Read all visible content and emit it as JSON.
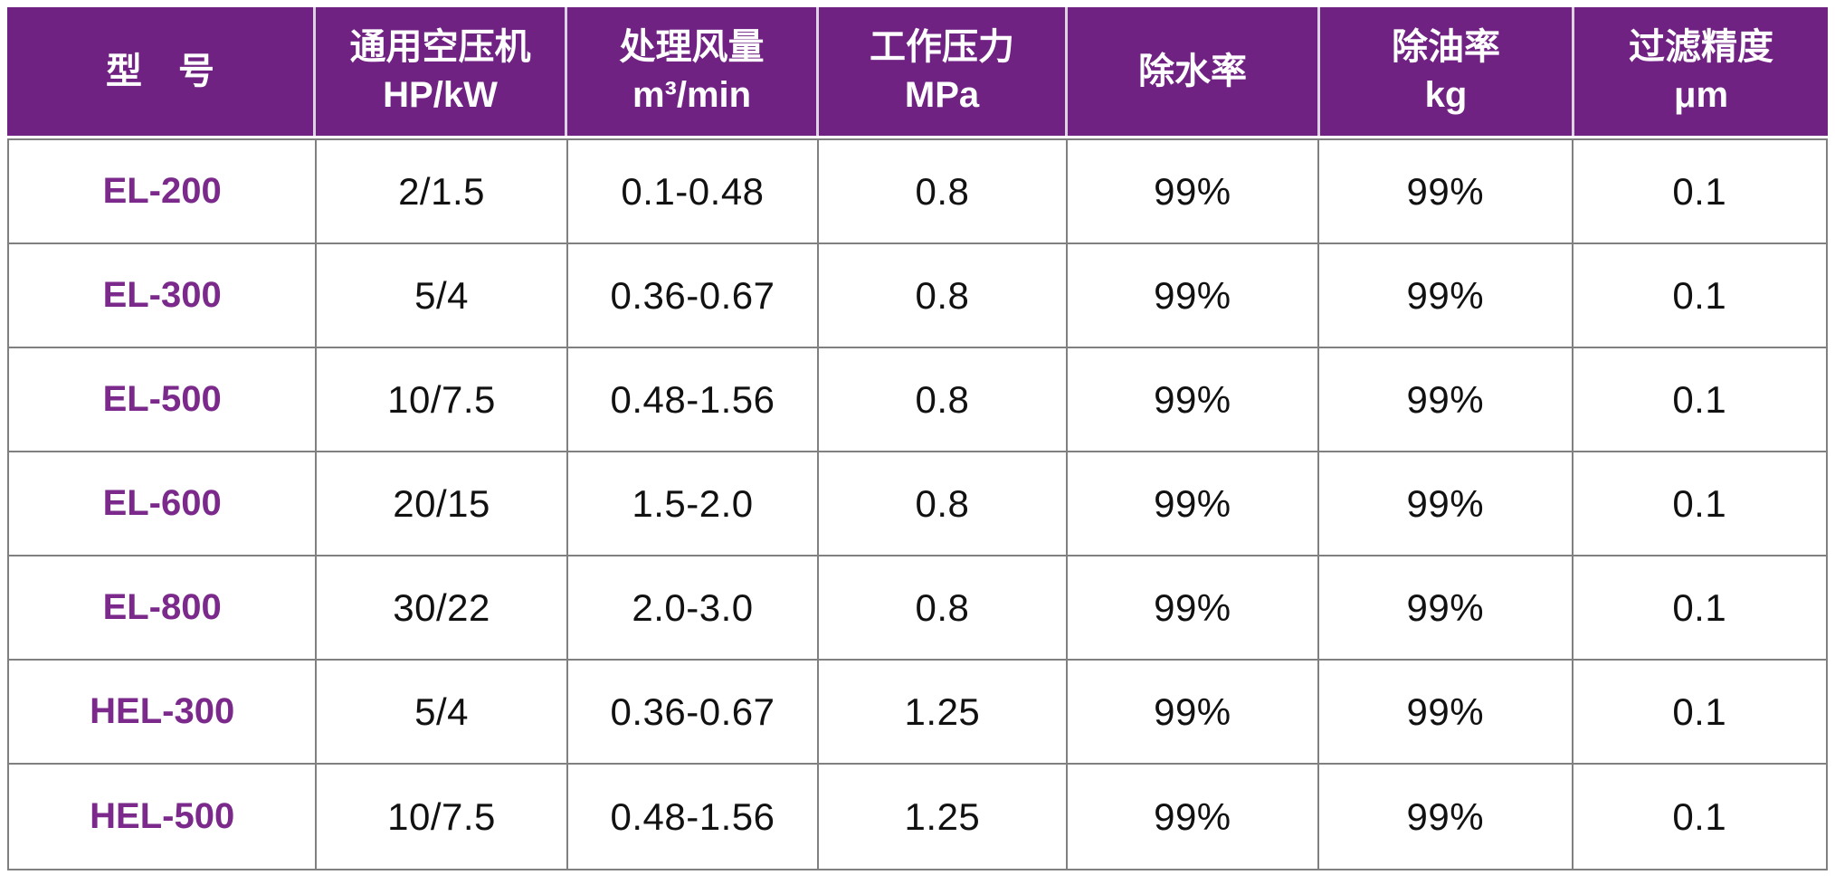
{
  "chart_data": {
    "type": "table",
    "columns": [
      {
        "title": "型　号",
        "unit": ""
      },
      {
        "title": "通用空压机",
        "unit": "HP/kW"
      },
      {
        "title": "处理风量",
        "unit": "m³/min"
      },
      {
        "title": "工作压力",
        "unit": "MPa"
      },
      {
        "title": "除水率",
        "unit": ""
      },
      {
        "title": "除油率",
        "unit": "kg"
      },
      {
        "title": "过滤精度",
        "unit": "μm"
      }
    ],
    "rows": [
      [
        "EL-200",
        "2/1.5",
        "0.1-0.48",
        "0.8",
        "99%",
        "99%",
        "0.1"
      ],
      [
        "EL-300",
        "5/4",
        "0.36-0.67",
        "0.8",
        "99%",
        "99%",
        "0.1"
      ],
      [
        "EL-500",
        "10/7.5",
        "0.48-1.56",
        "0.8",
        "99%",
        "99%",
        "0.1"
      ],
      [
        "EL-600",
        "20/15",
        "1.5-2.0",
        "0.8",
        "99%",
        "99%",
        "0.1"
      ],
      [
        "EL-800",
        "30/22",
        "2.0-3.0",
        "0.8",
        "99%",
        "99%",
        "0.1"
      ],
      [
        "HEL-300",
        "5/4",
        "0.36-0.67",
        "1.25",
        "99%",
        "99%",
        "0.1"
      ],
      [
        "HEL-500",
        "10/7.5",
        "0.48-1.56",
        "1.25",
        "99%",
        "99%",
        "0.1"
      ]
    ]
  },
  "colors": {
    "header_bg": "#702283",
    "header_text": "#ffffff",
    "model_text": "#7B2A8C",
    "body_text": "#111111",
    "grid_line": "#808080",
    "header_divider": "#DDD3E2",
    "page_bg": "#ffffff"
  }
}
